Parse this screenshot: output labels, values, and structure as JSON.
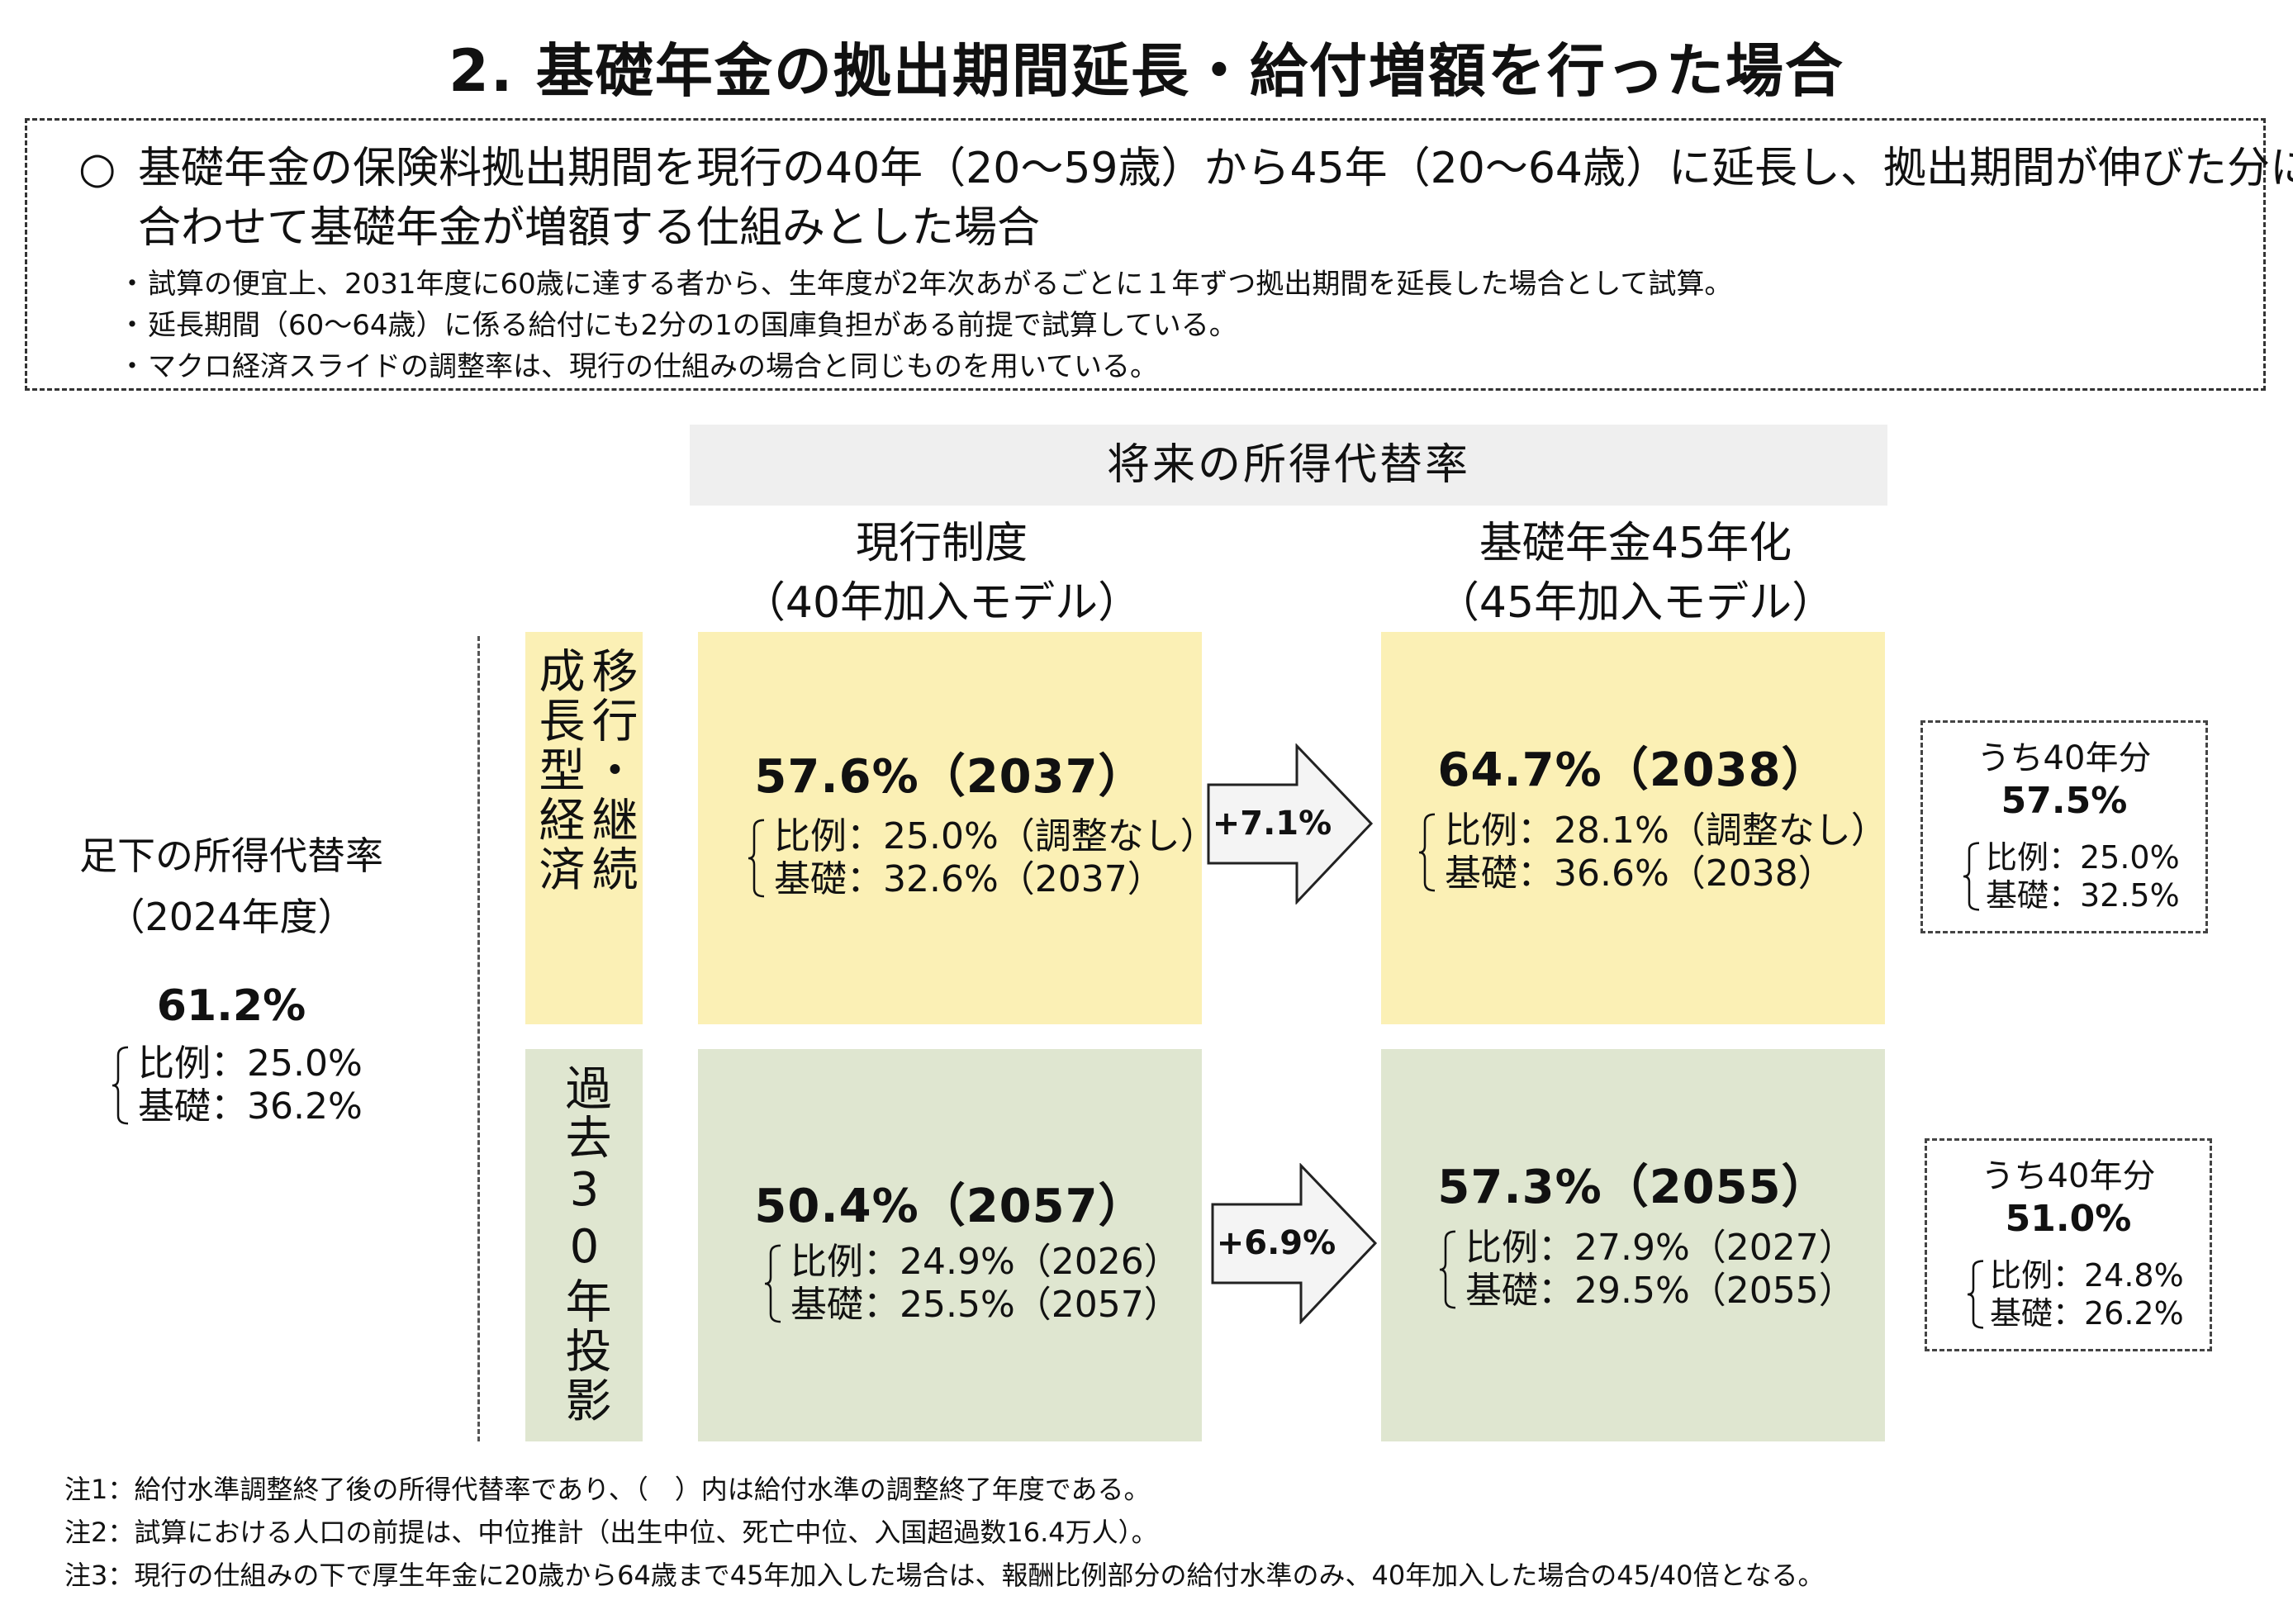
{
  "title": "2. 基礎年金の拠出期間延長・給付増額を行った場合",
  "summary": {
    "bullet_mark": "○",
    "main_text": "基礎年金の保険料拠出期間を現行の40年（20～59歳）から45年（20～64歳）に延長し、拠出期間が伸びた分に合わせて基礎年金が増額する仕組みとした場合",
    "sub_mark": "・",
    "sub_items": [
      "試算の便宜上、2031年度に60歳に達する者から、生年度が2年次あがるごとに１年ずつ拠出期間を延長した場合として試算。",
      "延長期間（60～64歳）に係る給付にも2分の1の国庫負担がある前提で試算している。",
      "マクロ経済スライドの調整率は、現行の仕組みの場合と同じものを用いている。"
    ]
  },
  "header_band": "将来の所得代替率",
  "columns": {
    "current": {
      "line1": "現行制度",
      "line2": "（40年加入モデル）"
    },
    "proposed": {
      "line1": "基礎年金45年化",
      "line2": "（45年加入モデル）"
    }
  },
  "baseline": {
    "label_line1": "足下の所得代替率",
    "label_line2": "（2024年度）",
    "value": "61.2%",
    "proportional": "比例：25.0%",
    "basic": "基礎：36.2%"
  },
  "scenarios": [
    {
      "label_col1": "成長型経済",
      "label_col2": "移行・継続",
      "current": {
        "title": "57.6%（2037）",
        "proportional": "比例：25.0%（調整なし）",
        "basic": "基礎：32.6%（2037）"
      },
      "delta": "+7.1%",
      "proposed": {
        "title": "64.7%（2038）",
        "proportional": "比例：28.1%（調整なし）",
        "basic": "基礎：36.6%（2038）"
      },
      "side": {
        "title": "うち40年分",
        "value": "57.5%",
        "proportional": "比例：25.0%",
        "basic": "基礎：32.5%"
      }
    },
    {
      "label_col1": "過去30年投影",
      "current": {
        "title": "50.4%（2057）",
        "proportional": "比例：24.9%（2026）",
        "basic": "基礎：25.5%（2057）"
      },
      "delta": "+6.9%",
      "proposed": {
        "title": "57.3%（2055）",
        "proportional": "比例：27.9%（2027）",
        "basic": "基礎：29.5%（2055）"
      },
      "side": {
        "title": "うち40年分",
        "value": "51.0%",
        "proportional": "比例：24.8%",
        "basic": "基礎：26.2%"
      }
    }
  ],
  "notes": [
    "注1：給付水準調整終了後の所得代替率であり、（　）内は給付水準の調整終了年度である。",
    "注2：試算における人口の前提は、中位推計（出生中位、死亡中位、入国超過数16.4万人）。",
    "注3：現行の仕組みの下で厚生年金に20歳から64歳まで45年加入した場合は、報酬比例部分の給付水準のみ、40年加入した場合の45/40倍となる。"
  ],
  "colors": {
    "growth_fill": "#fbf0b5",
    "past_fill": "#dfe6d0",
    "header_fill": "#efefef"
  },
  "icons": [
    "brace-icon",
    "right-arrow-icon"
  ]
}
